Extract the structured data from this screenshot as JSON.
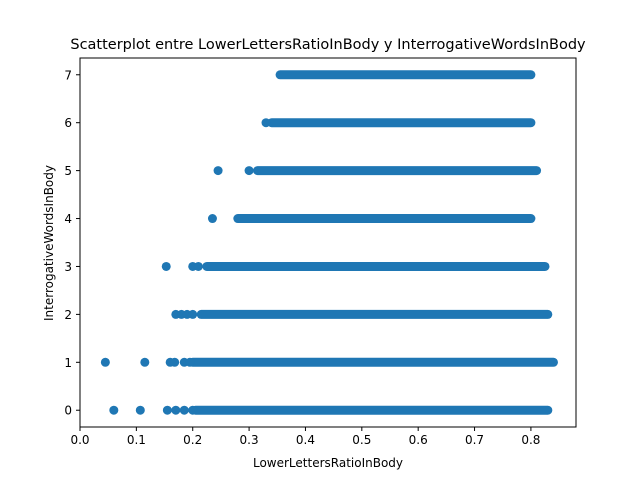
{
  "colors": {
    "marker": "#1f77b4",
    "axes": "#000000",
    "background": "#ffffff"
  },
  "chart_data": {
    "type": "scatter",
    "title": "Scatterplot entre LowerLettersRatioInBody y InterrogativeWordsInBody",
    "xlabel": "LowerLettersRatioInBody",
    "ylabel": "InterrogativeWordsInBody",
    "xlim": [
      0.0,
      0.88
    ],
    "ylim": [
      -0.35,
      7.35
    ],
    "grid": false,
    "legend": "none",
    "xticks": [
      0.0,
      0.1,
      0.2,
      0.3,
      0.4,
      0.5,
      0.6,
      0.7,
      0.8
    ],
    "xtick_labels": [
      "0.0",
      "0.1",
      "0.2",
      "0.3",
      "0.4",
      "0.5",
      "0.6",
      "0.7",
      "0.8"
    ],
    "yticks": [
      0,
      1,
      2,
      3,
      4,
      5,
      6,
      7
    ],
    "ytick_labels": [
      "0",
      "1",
      "2",
      "3",
      "4",
      "5",
      "6",
      "7"
    ],
    "rows": [
      {
        "y": 0,
        "isolated_x": [
          0.06,
          0.107,
          0.155,
          0.17,
          0.185,
          0.2
        ],
        "dense_from": 0.205,
        "dense_to": 0.83
      },
      {
        "y": 1,
        "isolated_x": [
          0.045,
          0.115,
          0.16,
          0.168,
          0.185,
          0.195
        ],
        "dense_from": 0.2,
        "dense_to": 0.84
      },
      {
        "y": 2,
        "isolated_x": [
          0.17,
          0.18,
          0.19,
          0.2
        ],
        "dense_from": 0.215,
        "dense_to": 0.83
      },
      {
        "y": 3,
        "isolated_x": [
          0.153,
          0.2,
          0.21
        ],
        "dense_from": 0.225,
        "dense_to": 0.825
      },
      {
        "y": 4,
        "isolated_x": [
          0.235
        ],
        "dense_from": 0.28,
        "dense_to": 0.8
      },
      {
        "y": 5,
        "isolated_x": [
          0.245,
          0.3
        ],
        "dense_from": 0.315,
        "dense_to": 0.81
      },
      {
        "y": 6,
        "isolated_x": [
          0.33
        ],
        "dense_from": 0.34,
        "dense_to": 0.8
      },
      {
        "y": 7,
        "isolated_x": [],
        "dense_from": 0.355,
        "dense_to": 0.8
      }
    ]
  }
}
